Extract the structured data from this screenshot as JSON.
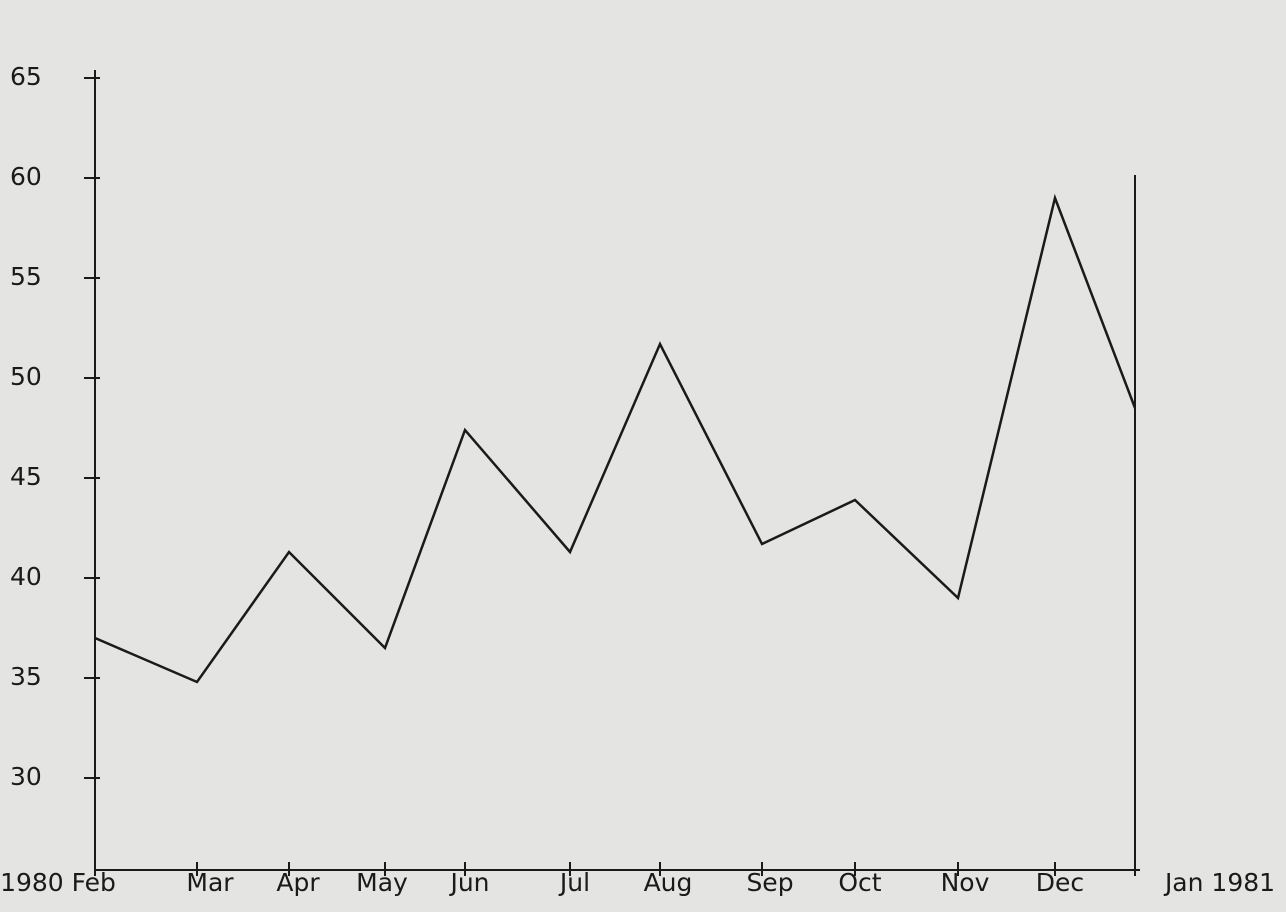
{
  "chart_data": {
    "type": "line",
    "categories": [
      "1980 Feb",
      "Mar",
      "Apr",
      "May",
      "Jun",
      "Jul",
      "Aug",
      "Sep",
      "Oct",
      "Nov",
      "Dec",
      "Jan 1981"
    ],
    "series": [
      {
        "color": "#1a1a1a",
        "values": [
          37,
          34.8,
          41.3,
          36.5,
          47.4,
          41.3,
          51.7,
          41.7,
          43.9,
          39,
          59,
          48.5
        ]
      }
    ],
    "ylim": [
      25.4,
      65.4
    ],
    "yticks": [
      30,
      35,
      40,
      45,
      50,
      55,
      60,
      65
    ]
  }
}
